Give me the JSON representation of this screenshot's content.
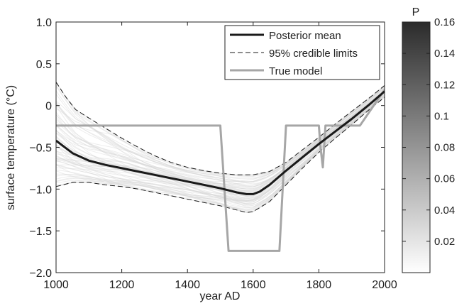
{
  "chart_data": {
    "type": "line",
    "xlabel": "year AD",
    "ylabel": "surface temperature (°C)",
    "xlim": [
      1000,
      2000
    ],
    "ylim": [
      -2.0,
      1.0
    ],
    "xticks": [
      1000,
      1200,
      1400,
      1600,
      1800,
      2000
    ],
    "yticks": [
      -2.0,
      -1.5,
      -1.0,
      -0.5,
      0,
      0.5,
      1.0
    ],
    "ytick_labels": [
      "−2.0",
      "−1.5",
      "−1.0",
      "−0.5",
      "0",
      "0.5",
      "1.0"
    ],
    "grid": false,
    "legend_position": "top-right",
    "series": [
      {
        "name": "Posterior mean",
        "style": "solid-thick",
        "color": "#1a1a1a",
        "x": [
          1000,
          1050,
          1100,
          1150,
          1200,
          1250,
          1300,
          1350,
          1400,
          1450,
          1500,
          1550,
          1580,
          1600,
          1620,
          1650,
          1700,
          1750,
          1800,
          1850,
          1900,
          1950,
          2000
        ],
        "y": [
          -0.42,
          -0.57,
          -0.66,
          -0.71,
          -0.75,
          -0.79,
          -0.83,
          -0.87,
          -0.91,
          -0.95,
          -0.99,
          -1.04,
          -1.06,
          -1.06,
          -1.03,
          -0.95,
          -0.78,
          -0.62,
          -0.46,
          -0.31,
          -0.16,
          0.0,
          0.17
        ]
      },
      {
        "name": "95% credible limits",
        "style": "dashed",
        "color": "#1a1a1a",
        "x": [
          1000,
          1030,
          1060,
          1100,
          1150,
          1200,
          1250,
          1300,
          1350,
          1400,
          1450,
          1500,
          1550,
          1600,
          1650,
          1700,
          1750,
          1800,
          1850,
          1900,
          1950,
          2000
        ],
        "y": [
          0.28,
          0.1,
          -0.05,
          -0.15,
          -0.27,
          -0.39,
          -0.5,
          -0.6,
          -0.68,
          -0.74,
          -0.78,
          -0.81,
          -0.83,
          -0.83,
          -0.79,
          -0.68,
          -0.53,
          -0.38,
          -0.22,
          -0.07,
          0.08,
          0.24
        ]
      },
      {
        "name": "95% credible limits",
        "style": "dashed",
        "color": "#1a1a1a",
        "x": [
          1000,
          1050,
          1100,
          1150,
          1200,
          1250,
          1300,
          1350,
          1400,
          1450,
          1500,
          1550,
          1580,
          1600,
          1650,
          1700,
          1750,
          1800,
          1850,
          1900,
          1950,
          2000
        ],
        "y": [
          -0.97,
          -0.92,
          -0.92,
          -0.95,
          -0.97,
          -1.0,
          -1.04,
          -1.08,
          -1.12,
          -1.16,
          -1.2,
          -1.25,
          -1.28,
          -1.27,
          -1.15,
          -0.95,
          -0.75,
          -0.56,
          -0.39,
          -0.23,
          -0.06,
          0.1
        ]
      },
      {
        "name": "True model",
        "style": "solid-gray",
        "color": "#a6a6a6",
        "x": [
          1000,
          1500,
          1525,
          1680,
          1700,
          1800,
          1805,
          1812,
          1820,
          1925,
          2000
        ],
        "y": [
          -0.24,
          -0.24,
          -1.74,
          -1.74,
          -0.24,
          -0.24,
          -0.5,
          -0.74,
          -0.24,
          -0.24,
          0.19
        ]
      }
    ],
    "colorbar": {
      "label": "P",
      "min": 0.0,
      "max": 0.16,
      "ticks": [
        0.02,
        0.04,
        0.06,
        0.08,
        0.1,
        0.12,
        0.14,
        0.16
      ],
      "tick_labels": [
        "0.02",
        "0.04",
        "0.06",
        "0.08",
        "0.1",
        "0.12",
        "0.14",
        "0.16"
      ],
      "color_low": "#ffffff",
      "color_high": "#2b2b2b"
    },
    "density_cloud_color": "#d8d8d8"
  }
}
